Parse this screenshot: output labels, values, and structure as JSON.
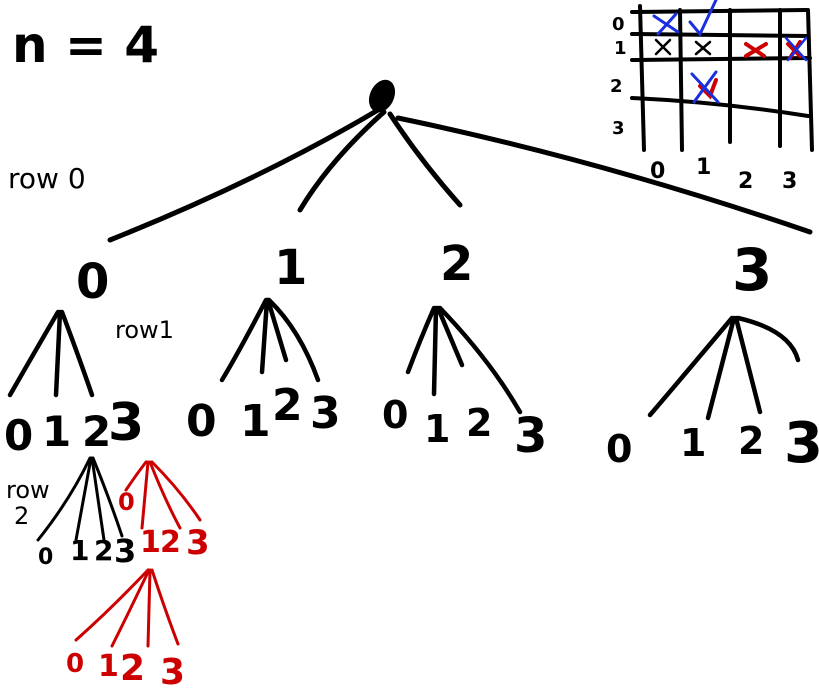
{
  "heading": "n = 4",
  "row_labels": {
    "row0": "row 0",
    "row1": "row1",
    "row2a": "row",
    "row2b": "2"
  },
  "root": {
    "children": [
      "0",
      "1",
      "2",
      "3"
    ]
  },
  "level1_children": {
    "node0": [
      "0",
      "1",
      "2",
      "3"
    ],
    "node1": [
      "0",
      "1",
      "2",
      "3"
    ],
    "node2": [
      "0",
      "1",
      "2",
      "3"
    ],
    "node3": [
      "0",
      "1",
      "2",
      "3"
    ]
  },
  "level2_black": [
    "0",
    "1",
    "2",
    "3"
  ],
  "level2_red": [
    "0",
    "1",
    "2",
    "3"
  ],
  "level3_red": [
    "0",
    "1",
    "2",
    "3"
  ],
  "board": {
    "row_labels": [
      "0",
      "1",
      "2",
      "3"
    ],
    "col_labels": [
      "0",
      "1",
      "2",
      "3"
    ]
  },
  "colors": {
    "ink": "#000000",
    "red": "#cc0000",
    "blue": "#1a2fe0"
  }
}
